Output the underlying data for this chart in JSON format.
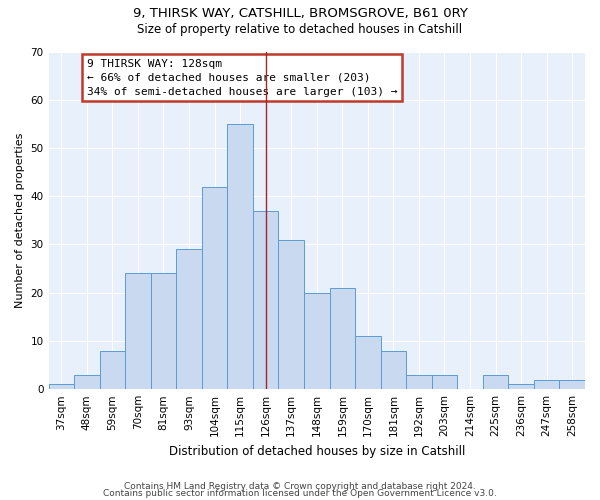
{
  "title_line1": "9, THIRSK WAY, CATSHILL, BROMSGROVE, B61 0RY",
  "title_line2": "Size of property relative to detached houses in Catshill",
  "xlabel": "Distribution of detached houses by size in Catshill",
  "ylabel": "Number of detached properties",
  "bar_color": "#c9d9f0",
  "bar_edge_color": "#5b9bd5",
  "categories": [
    "37sqm",
    "48sqm",
    "59sqm",
    "70sqm",
    "81sqm",
    "93sqm",
    "104sqm",
    "115sqm",
    "126sqm",
    "137sqm",
    "148sqm",
    "159sqm",
    "170sqm",
    "181sqm",
    "192sqm",
    "203sqm",
    "214sqm",
    "225sqm",
    "236sqm",
    "247sqm",
    "258sqm"
  ],
  "values": [
    1,
    3,
    8,
    24,
    24,
    29,
    42,
    55,
    37,
    31,
    20,
    21,
    11,
    8,
    3,
    3,
    0,
    3,
    1,
    2,
    2
  ],
  "vline_x": 8.0,
  "vline_color": "#a0272a",
  "annotation_text": "9 THIRSK WAY: 128sqm\n← 66% of detached houses are smaller (203)\n34% of semi-detached houses are larger (103) →",
  "annotation_box_color": "#ffffff",
  "annotation_box_edge": "#c0392b",
  "ylim": [
    0,
    70
  ],
  "yticks": [
    0,
    10,
    20,
    30,
    40,
    50,
    60,
    70
  ],
  "background_color": "#e8f0fb",
  "grid_color": "#ffffff",
  "footer_line1": "Contains HM Land Registry data © Crown copyright and database right 2024.",
  "footer_line2": "Contains public sector information licensed under the Open Government Licence v3.0."
}
